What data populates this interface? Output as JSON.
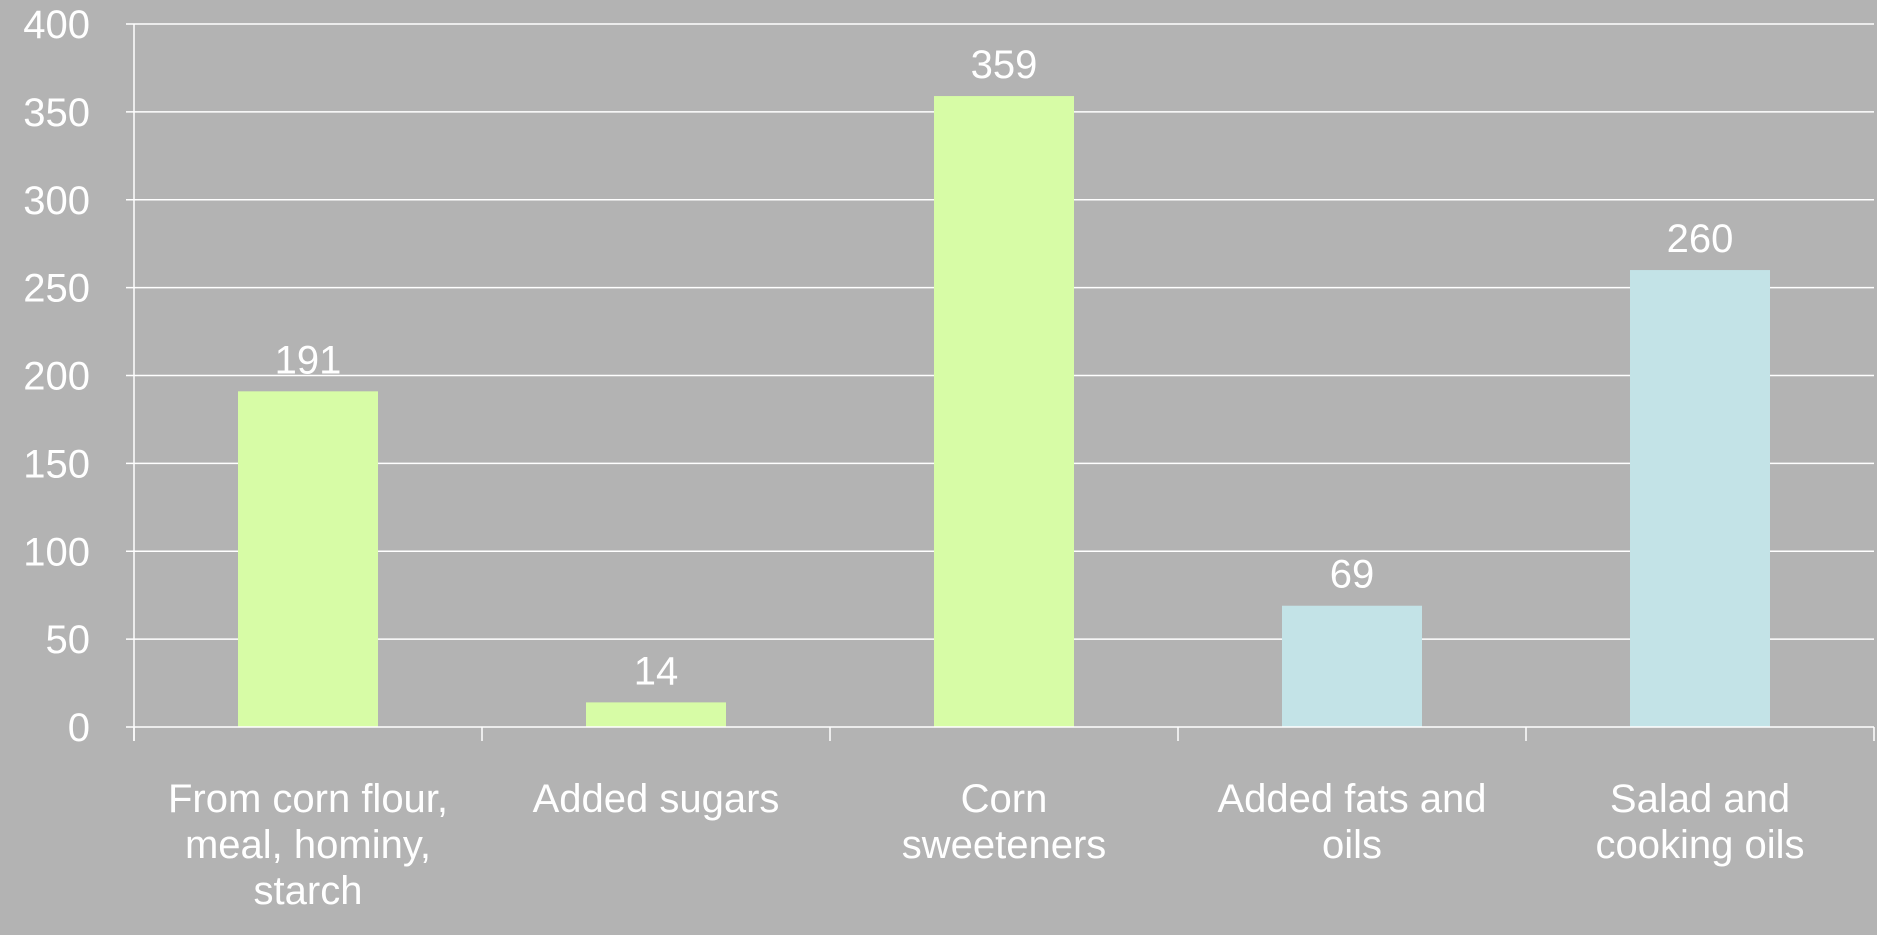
{
  "chart_data": {
    "type": "bar",
    "title": "",
    "xlabel": "",
    "ylabel": "",
    "ylim": [
      0,
      400
    ],
    "yticks": [
      0,
      50,
      100,
      150,
      200,
      250,
      300,
      350,
      400
    ],
    "grid": true,
    "legend": "none",
    "categories": [
      "From corn flour,\nmeal, hominy,\nstarch",
      "Added sugars",
      "Corn\nsweeteners",
      "Added fats and\noils",
      "Salad and\ncooking oils"
    ],
    "values": [
      191,
      14,
      359,
      69,
      260
    ],
    "bar_colors": [
      "#d7fca6",
      "#d7fca6",
      "#d7fca6",
      "#c3e3e7",
      "#c3e3e7"
    ],
    "colors": {
      "background": "#b3b3b3",
      "grid": "#ffffff",
      "text": "#ffffff"
    }
  }
}
